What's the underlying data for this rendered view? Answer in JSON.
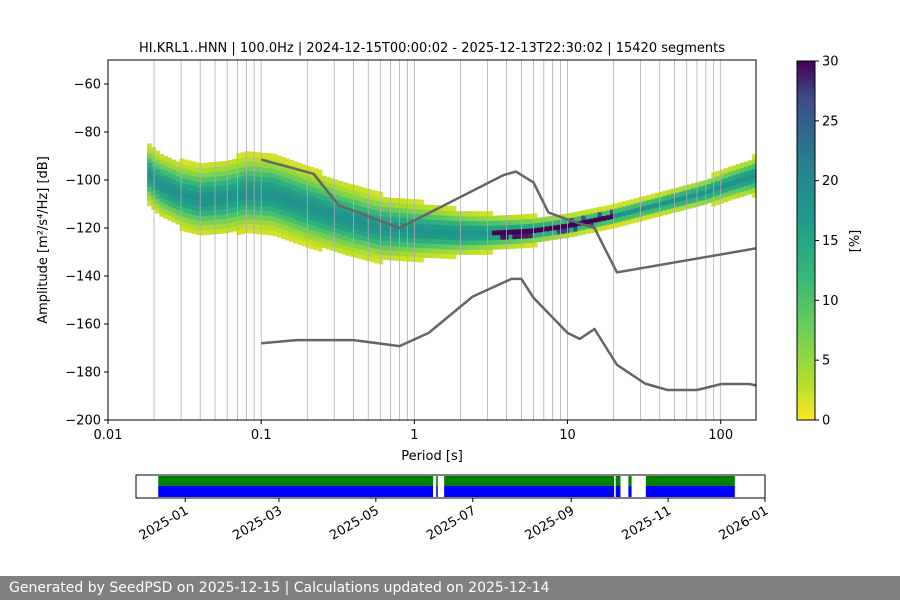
{
  "chart_data": [
    {
      "type": "heatmap",
      "title": "HI.KRL1..HNN | 100.0Hz | 2024-12-15T00:00:02 - 2025-12-13T22:30:02 | 15420 segments",
      "xlabel": "Period [s]",
      "ylabel": "Amplitude [m²/s⁴/Hz] [dB]",
      "x_scale": "log",
      "xlim": [
        0.01,
        170
      ],
      "ylim": [
        -200,
        -50
      ],
      "x_ticks": [
        {
          "value": 0.01,
          "label": "0.01"
        },
        {
          "value": 0.1,
          "label": "0.1"
        },
        {
          "value": 1,
          "label": "1"
        },
        {
          "value": 10,
          "label": "10"
        },
        {
          "value": 100,
          "label": "100"
        }
      ],
      "y_ticks": [
        -60,
        -80,
        -100,
        -120,
        -140,
        -160,
        -180,
        -200
      ],
      "grid": "x",
      "colorbar": {
        "label": "[%]",
        "range": [
          0,
          30
        ],
        "ticks": [
          0,
          5,
          10,
          15,
          20,
          25,
          30
        ],
        "colormap": "viridis_r"
      },
      "mode_curve": {
        "period": [
          0.018,
          0.022,
          0.03,
          0.04,
          0.06,
          0.08,
          0.12,
          0.2,
          0.35,
          0.6,
          1.0,
          2.0,
          3.0,
          4.5,
          6.0,
          10,
          20,
          40,
          80,
          120,
          170
        ],
        "db": [
          -97,
          -102,
          -106,
          -108,
          -107,
          -105,
          -106,
          -111,
          -116,
          -120,
          -121,
          -122,
          -122,
          -121.5,
          -121,
          -119,
          -115,
          -110,
          -105,
          -101,
          -98
        ]
      },
      "reference_models": [
        {
          "period": [
            0.1,
            0.22,
            0.32,
            0.8,
            3.8,
            4.6,
            6.0,
            7.5,
            10,
            15,
            21,
            170
          ],
          "db": [
            -91.5,
            -97.4,
            -110.5,
            -120,
            -98,
            -96.5,
            -101,
            -113.5,
            -116.5,
            -120,
            -138.5,
            -128.5
          ]
        },
        {
          "period": [
            0.1,
            0.17,
            0.4,
            0.8,
            1.24,
            2.4,
            4.3,
            5,
            6,
            10,
            12,
            15,
            21,
            32,
            45,
            70,
            101,
            154,
            170
          ],
          "db": [
            -168,
            -166.7,
            -166.7,
            -169.2,
            -163.7,
            -148.6,
            -141.2,
            -141.2,
            -149.1,
            -163.7,
            -166.2,
            -162.1,
            -177,
            -184.8,
            -187.5,
            -187.5,
            -185,
            -185,
            -185.6
          ]
        }
      ],
      "series_color": "#666666"
    },
    {
      "type": "timeline",
      "x_ticks": [
        "2025-01",
        "2025-03",
        "2025-05",
        "2025-07",
        "2025-09",
        "2025-11",
        "2026-01"
      ],
      "range": [
        "2024-12-01",
        "2026-01-01"
      ],
      "data_span": [
        "2024-12-15",
        "2025-12-13"
      ],
      "gaps": [
        [
          "2025-06-06",
          "2025-06-08"
        ],
        [
          "2025-06-09",
          "2025-06-13"
        ],
        [
          "2025-09-28",
          "2025-09-29"
        ],
        [
          "2025-10-02",
          "2025-10-07"
        ],
        [
          "2025-10-09",
          "2025-10-18"
        ]
      ],
      "top_row_color": "#008000",
      "bottom_row_color": "#0000ff"
    }
  ],
  "footer": "Generated by SeedPSD on 2025-12-15 | Calculations updated on 2025-12-14"
}
